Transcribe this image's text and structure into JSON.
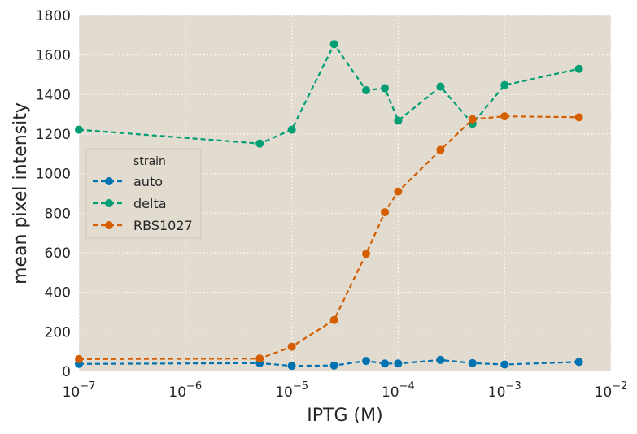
{
  "chart_data": {
    "type": "line",
    "xlabel": "IPTG (M)",
    "ylabel": "mean pixel intensity",
    "xscale": "log",
    "xlim": [
      1e-07,
      0.01
    ],
    "ylim": [
      0,
      1800
    ],
    "x_tick_values": [
      1e-07,
      1e-06,
      1e-05,
      0.0001,
      0.001,
      0.01
    ],
    "x_tick_labels": [
      {
        "base": "10",
        "exp": "−7"
      },
      {
        "base": "10",
        "exp": "−6"
      },
      {
        "base": "10",
        "exp": "−5"
      },
      {
        "base": "10",
        "exp": "−4"
      },
      {
        "base": "10",
        "exp": "−3"
      },
      {
        "base": "10",
        "exp": "−2"
      }
    ],
    "y_ticks": [
      0,
      200,
      400,
      600,
      800,
      1000,
      1200,
      1400,
      1600,
      1800
    ],
    "grid": true,
    "background": "#e1dbd0",
    "legend": {
      "title": "strain",
      "placement": "center-left"
    },
    "series": [
      {
        "name": "auto",
        "color": "#0072b2",
        "x": [
          1e-07,
          5e-06,
          1e-05,
          2.5e-05,
          5e-05,
          7.5e-05,
          0.0001,
          0.00025,
          0.0005,
          0.001,
          0.005
        ],
        "y": [
          38,
          42,
          28,
          30,
          53,
          40,
          40,
          58,
          42,
          35,
          48
        ]
      },
      {
        "name": "delta",
        "color": "#009e73",
        "x": [
          1e-07,
          5e-06,
          1e-05,
          2.5e-05,
          5e-05,
          7.5e-05,
          0.0001,
          0.00025,
          0.0005,
          0.001,
          0.005
        ],
        "y": [
          1222,
          1152,
          1222,
          1655,
          1422,
          1432,
          1268,
          1440,
          1252,
          1448,
          1530
        ]
      },
      {
        "name": "RBS1027",
        "color": "#d55e00",
        "x": [
          1e-07,
          5e-06,
          1e-05,
          2.5e-05,
          5e-05,
          7.5e-05,
          0.0001,
          0.00025,
          0.0005,
          0.001,
          0.005
        ],
        "y": [
          62,
          65,
          125,
          260,
          595,
          805,
          910,
          1120,
          1275,
          1290,
          1285
        ]
      }
    ]
  }
}
